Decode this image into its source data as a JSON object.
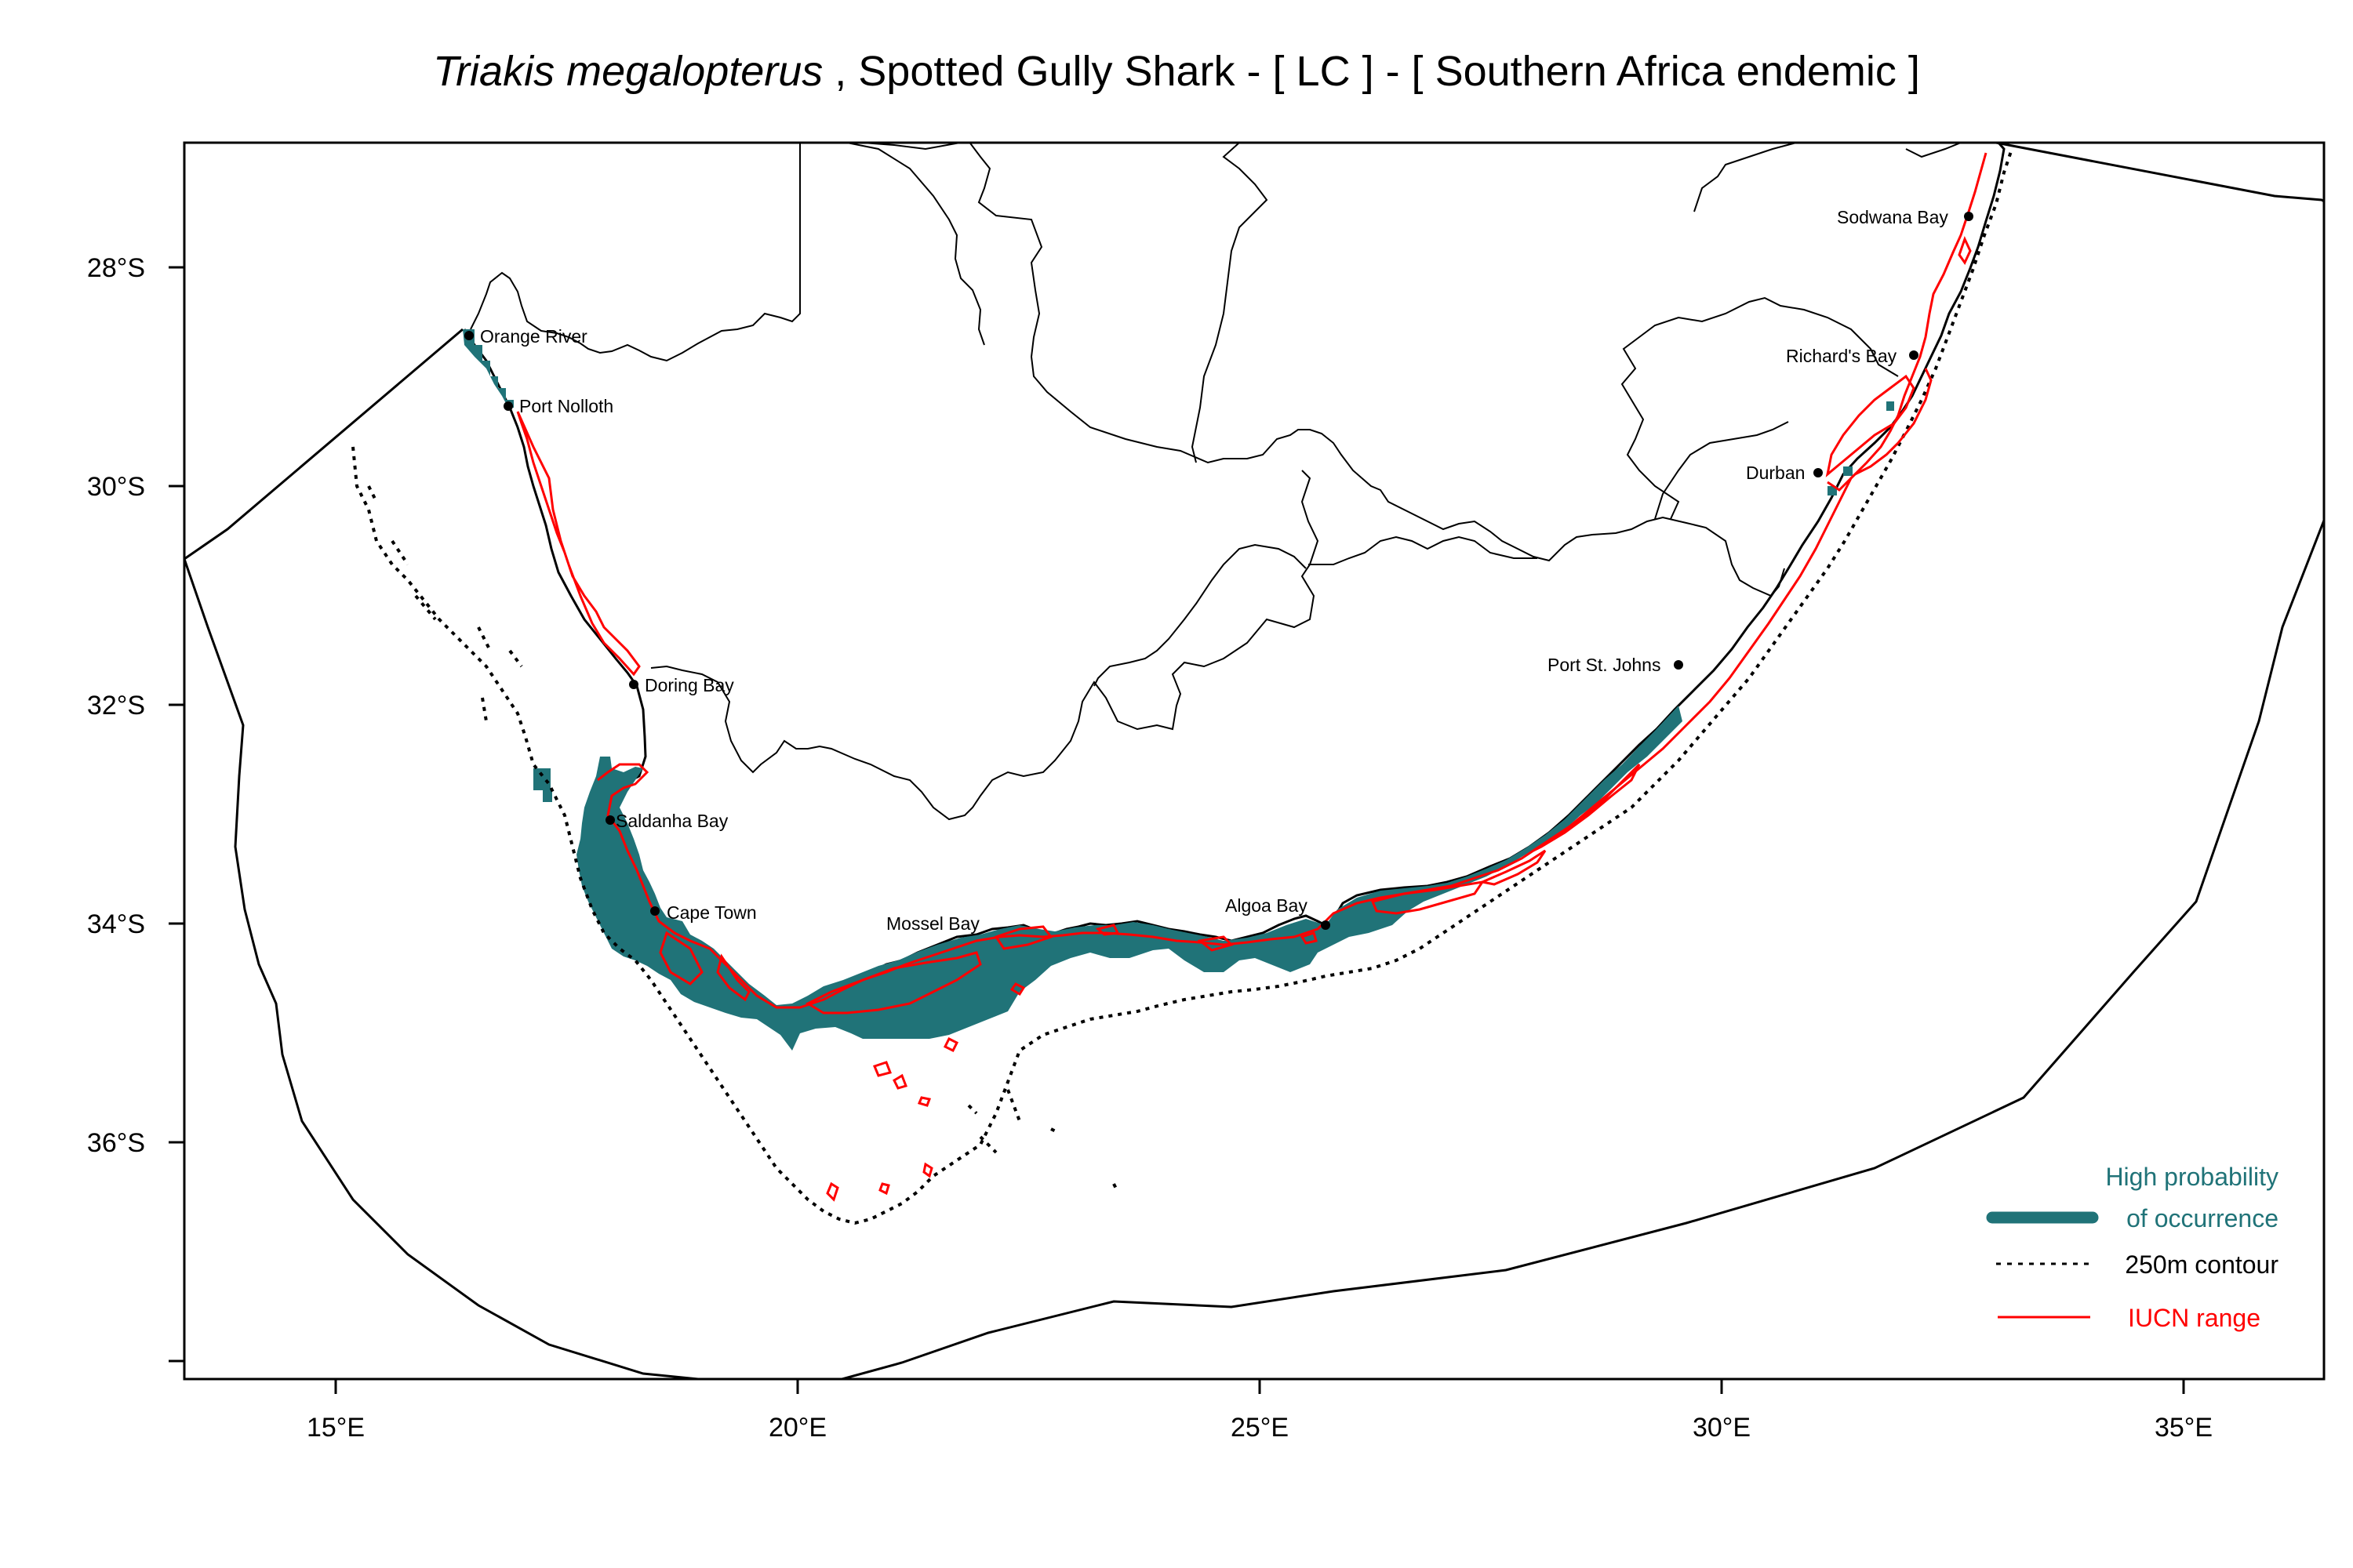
{
  "title": {
    "species": "Triakis megalopterus",
    "rest": " , Spotted Gully Shark  - [ LC ] - [ Southern Africa endemic ]"
  },
  "axes": {
    "x_ticks": [
      "15°E",
      "20°E",
      "25°E",
      "30°E",
      "35°E"
    ],
    "y_ticks": [
      "28°S",
      "30°S",
      "32°S",
      "34°S",
      "36°S"
    ]
  },
  "places": [
    {
      "id": "orange-river",
      "label": "Orange River"
    },
    {
      "id": "port-nolloth",
      "label": "Port Nolloth"
    },
    {
      "id": "doring-bay",
      "label": "Doring Bay"
    },
    {
      "id": "saldanha-bay",
      "label": "Saldanha Bay"
    },
    {
      "id": "cape-town",
      "label": "Cape Town"
    },
    {
      "id": "mossel-bay",
      "label": "Mossel Bay"
    },
    {
      "id": "algoa-bay",
      "label": "Algoa Bay"
    },
    {
      "id": "port-st-johns",
      "label": "Port St. Johns"
    },
    {
      "id": "durban",
      "label": "Durban"
    },
    {
      "id": "richards-bay",
      "label": "Richard's Bay"
    },
    {
      "id": "sodwana-bay",
      "label": "Sodwana Bay"
    }
  ],
  "legend": {
    "occurrence_line1": "High probability",
    "occurrence_line2": "of occurrence",
    "contour": "250m contour",
    "iucn": "IUCN range"
  },
  "colors": {
    "occurrence": "#207378",
    "iucn": "#ff0000",
    "border": "#000000"
  }
}
